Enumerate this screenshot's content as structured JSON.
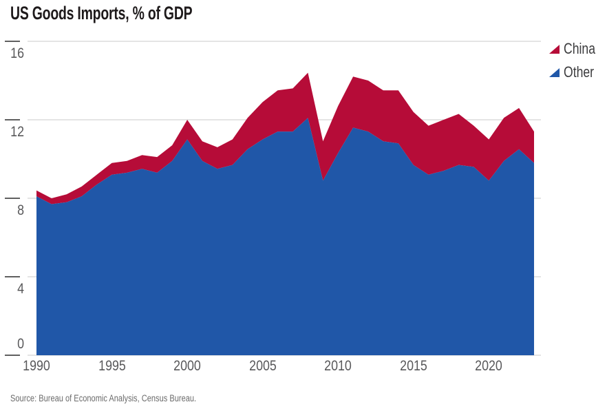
{
  "source_note": "Source: Bureau of Economic Analysis, Census Bureau.",
  "colors": {
    "china": "#b60c38",
    "other": "#2057a8",
    "gridline": "#c9c9c9",
    "tick": "#5f5f5f",
    "axis_text": "#58585a"
  },
  "chart_data": {
    "type": "area",
    "stacked": true,
    "title": "US Goods Imports, % of GDP",
    "xlabel": "",
    "ylabel": "% of GDP",
    "ylim": [
      0,
      16
    ],
    "yticks": [
      0,
      4,
      8,
      12,
      16
    ],
    "xticks": [
      1990,
      1995,
      2000,
      2005,
      2010,
      2015,
      2020
    ],
    "grid": "horizontal",
    "legend_position": "top-right",
    "x": [
      1990,
      1991,
      1992,
      1993,
      1994,
      1995,
      1996,
      1997,
      1998,
      1999,
      2000,
      2001,
      2002,
      2003,
      2004,
      2005,
      2006,
      2007,
      2008,
      2009,
      2010,
      2011,
      2012,
      2013,
      2014,
      2015,
      2016,
      2017,
      2018,
      2019,
      2020,
      2021,
      2022,
      2023
    ],
    "series": [
      {
        "name": "China",
        "color": "#b60c38",
        "values": [
          0.3,
          0.3,
          0.4,
          0.5,
          0.5,
          0.6,
          0.6,
          0.7,
          0.8,
          0.8,
          1.0,
          1.0,
          1.1,
          1.3,
          1.6,
          1.9,
          2.1,
          2.2,
          2.3,
          2.0,
          2.4,
          2.6,
          2.6,
          2.6,
          2.7,
          2.7,
          2.5,
          2.6,
          2.6,
          2.1,
          2.1,
          2.2,
          2.1,
          1.6
        ]
      },
      {
        "name": "Other",
        "color": "#2057a8",
        "values": [
          8.1,
          7.7,
          7.8,
          8.1,
          8.7,
          9.2,
          9.3,
          9.5,
          9.3,
          9.9,
          11.0,
          9.9,
          9.5,
          9.7,
          10.5,
          11.0,
          11.4,
          11.4,
          12.1,
          8.9,
          10.3,
          11.6,
          11.4,
          10.9,
          10.8,
          9.7,
          9.2,
          9.4,
          9.7,
          9.6,
          8.9,
          9.9,
          10.5,
          9.8
        ]
      }
    ]
  }
}
